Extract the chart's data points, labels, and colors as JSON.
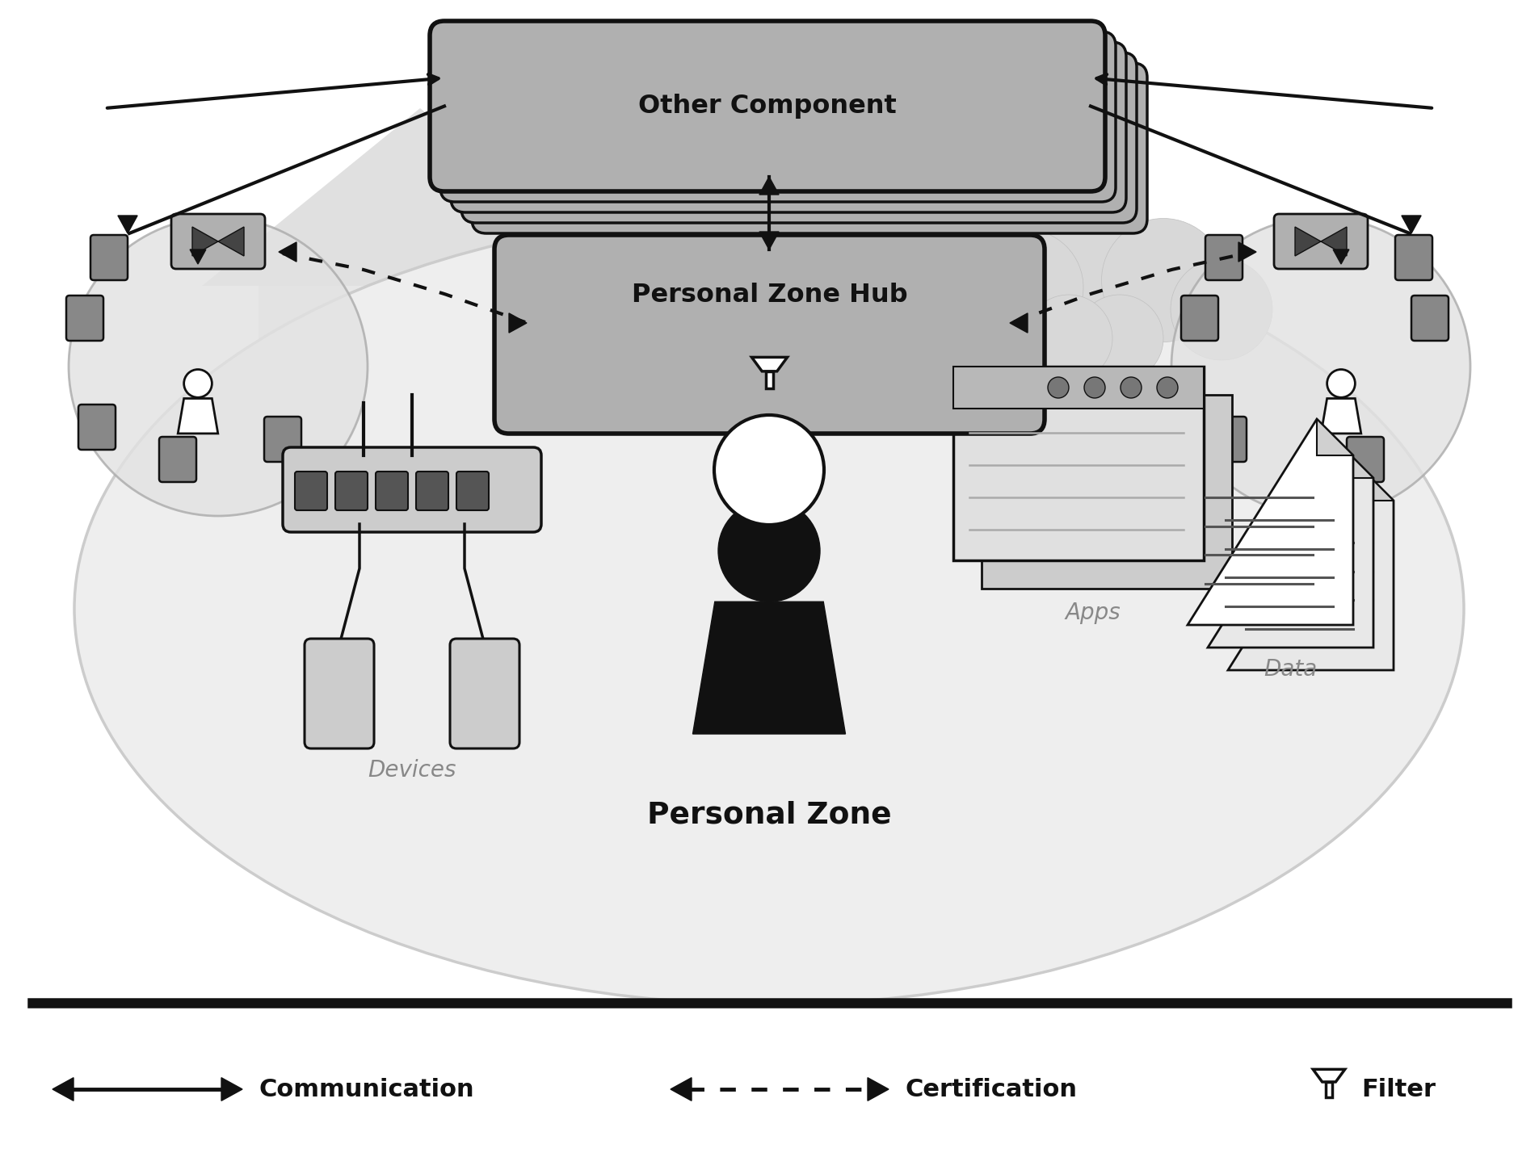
{
  "bg_color": "#ffffff",
  "hub_box_text": "Personal Zone Hub",
  "other_box_text": "Other Component",
  "personal_zone_text": "Personal Zone",
  "devices_text": "Devices",
  "apps_text": "Apps",
  "data_text": "Data",
  "legend_communication": "Communication",
  "legend_certification": "Certification",
  "legend_filter": "Filter",
  "black": "#111111",
  "box_fill": "#b0b0b0",
  "box_fill_dark": "#999999"
}
